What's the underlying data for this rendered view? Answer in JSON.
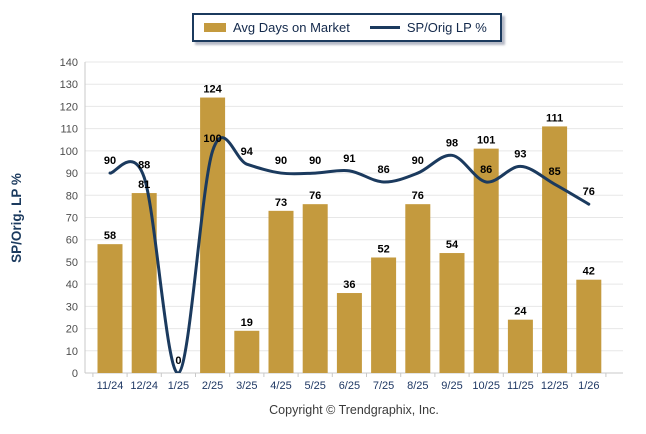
{
  "legend": {
    "bar_label": "Avg Days on Market",
    "line_label": "SP/Orig LP %"
  },
  "footer": {
    "copyright": "Copyright © Trendgraphix, Inc."
  },
  "colors": {
    "bar": "#C49A3E",
    "line": "#1B3A5E",
    "grid": "#E7E7E7",
    "axis": "#C9C9C9",
    "x_tick_label": "#1F3864",
    "y_tick_label": "#4D4D4D",
    "data_label": "#000000"
  },
  "chart_data": {
    "type": "bar",
    "categories": [
      "11/24",
      "12/24",
      "1/25",
      "2/25",
      "3/25",
      "4/25",
      "5/25",
      "6/25",
      "7/25",
      "8/25",
      "9/25",
      "10/25",
      "11/25",
      "12/25",
      "1/26"
    ],
    "series": [
      {
        "name": "Avg Days on Market",
        "type": "bar",
        "values": [
          58,
          81,
          0,
          124,
          19,
          73,
          76,
          36,
          52,
          76,
          54,
          101,
          24,
          111,
          42
        ]
      },
      {
        "name": "SP/Orig LP %",
        "type": "line",
        "values": [
          90,
          88,
          0,
          100,
          94,
          90,
          90,
          91,
          86,
          90,
          98,
          86,
          93,
          85,
          76
        ]
      }
    ],
    "title": "",
    "xlabel": "",
    "ylabel": "SP/Orig. LP %",
    "ylim": [
      0,
      140
    ],
    "ytick_step": 10,
    "grid": true,
    "legend_position": "top"
  }
}
